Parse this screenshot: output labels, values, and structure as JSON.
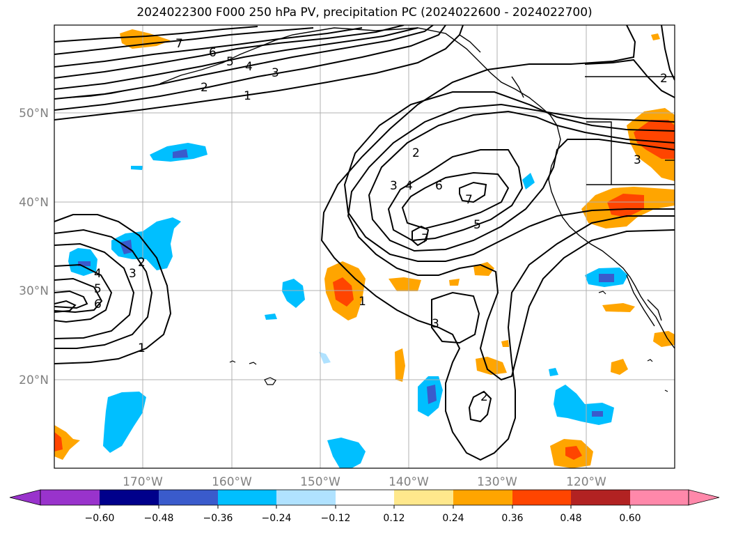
{
  "title": "2024022300 F000 250 hPa PV, precipitation PC (2024022600 - 2024022700)",
  "map": {
    "latitude_labels": [
      "50°N",
      "40°N",
      "30°N",
      "20°N"
    ],
    "longitude_labels": [
      "170°W",
      "160°W",
      "150°W",
      "140°W",
      "130°W",
      "120°W"
    ],
    "contour_labels": [
      "7",
      "6",
      "5",
      "4",
      "3",
      "2",
      "1",
      "2",
      "3",
      "4",
      "6",
      "7",
      "5",
      "7",
      "1",
      "3",
      "2",
      "4",
      "5",
      "6",
      "3",
      "2",
      "1",
      "2",
      "3"
    ],
    "line_color": "#000000",
    "grid_color": "#b0b0b0"
  },
  "colorbar": {
    "ticks": [
      "−0.60",
      "−0.48",
      "−0.36",
      "−0.24",
      "−0.12",
      "0.12",
      "0.24",
      "0.36",
      "0.48",
      "0.60"
    ],
    "colors": [
      "#9933cc",
      "#00008b",
      "#3a5bcc",
      "#00bfff",
      "#b0e2ff",
      "#ffffff",
      "#ffe88c",
      "#ffa500",
      "#ff4500",
      "#b22222",
      "#ff88aa"
    ]
  }
}
